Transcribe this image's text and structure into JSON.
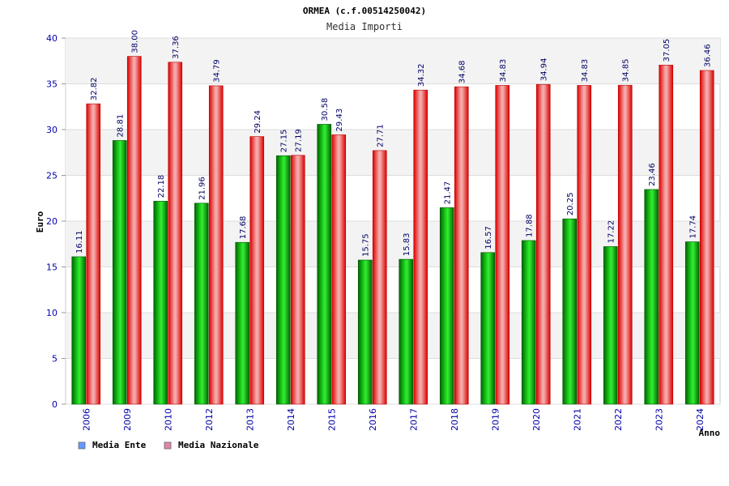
{
  "chart_data": {
    "type": "bar",
    "title": "ORMEA (c.f.00514250042)",
    "subtitle": "Media Importi",
    "xlabel": "Anno",
    "ylabel": "Euro",
    "ylim": [
      0,
      40
    ],
    "yticks": [
      0,
      5,
      10,
      15,
      20,
      25,
      30,
      35,
      40
    ],
    "grid": true,
    "legend_position": "bottom-left",
    "categories": [
      "2006",
      "2009",
      "2010",
      "2012",
      "2013",
      "2014",
      "2015",
      "2016",
      "2017",
      "2018",
      "2019",
      "2020",
      "2021",
      "2022",
      "2023",
      "2024"
    ],
    "series": [
      {
        "name": "Media Ente",
        "color": "#00aa00",
        "legend_color": "#6699ff",
        "values": [
          16.11,
          28.81,
          22.18,
          21.96,
          17.68,
          27.15,
          30.58,
          15.75,
          15.83,
          21.47,
          16.57,
          17.88,
          20.25,
          17.22,
          23.46,
          17.74
        ],
        "labels": [
          "16.11",
          "28.81",
          "22.18",
          "21.96",
          "17.68",
          "27.15",
          "30.58",
          "15.75",
          "15.83",
          "21.47",
          "16.57",
          "17.88",
          "20.25",
          "17.22",
          "23.46",
          "17.74"
        ]
      },
      {
        "name": "Media Nazionale",
        "color": "#ee0000",
        "legend_color": "#dd88aa",
        "values": [
          32.82,
          38.0,
          37.36,
          34.79,
          29.24,
          27.19,
          29.43,
          27.71,
          34.32,
          34.68,
          34.83,
          34.94,
          34.83,
          34.85,
          37.05,
          36.46
        ],
        "labels": [
          "32.82",
          "38.00",
          "37.36",
          "34.79",
          "29.24",
          "27.19",
          "29.43",
          "27.71",
          "34.32",
          "34.68",
          "34.83",
          "34.94",
          "34.83",
          "34.85",
          "37.05",
          "36.46"
        ]
      }
    ]
  }
}
